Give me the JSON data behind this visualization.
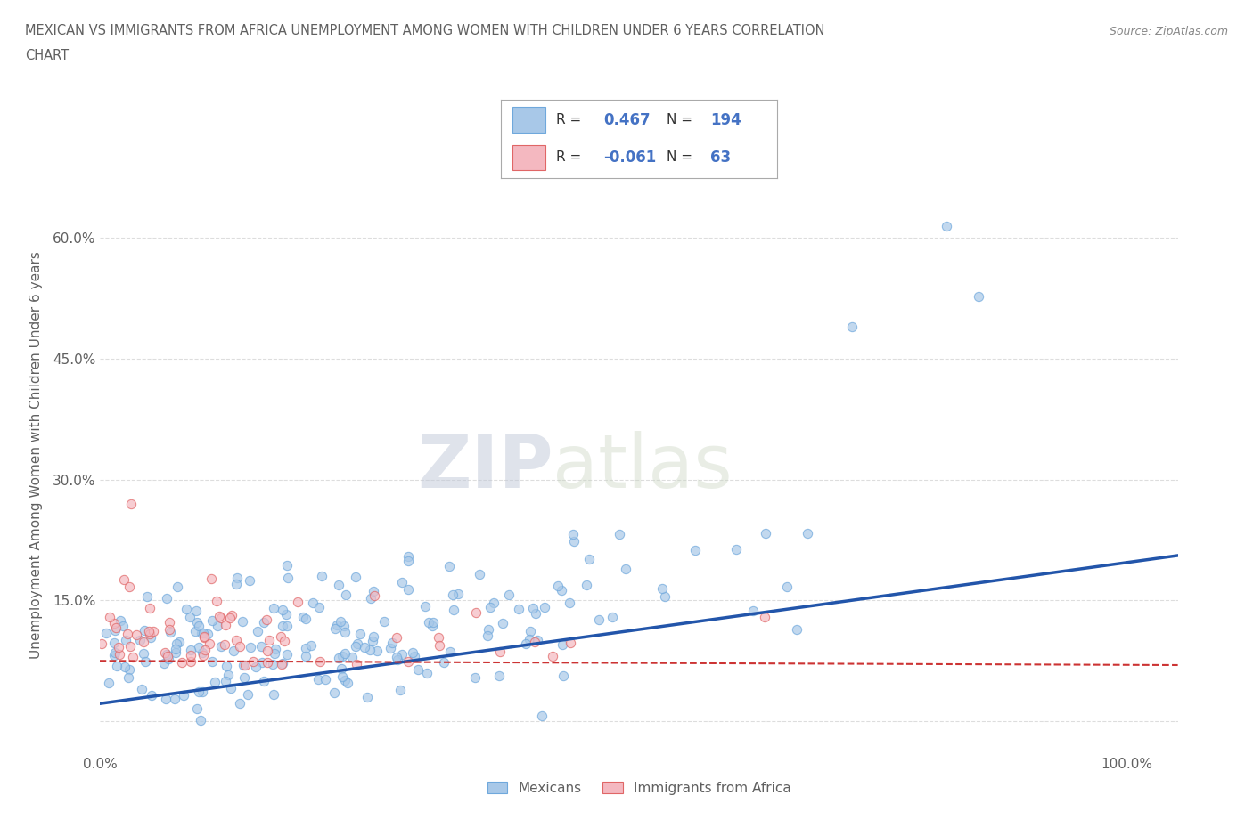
{
  "title_line1": "MEXICAN VS IMMIGRANTS FROM AFRICA UNEMPLOYMENT AMONG WOMEN WITH CHILDREN UNDER 6 YEARS CORRELATION",
  "title_line2": "CHART",
  "source": "Source: ZipAtlas.com",
  "ylabel": "Unemployment Among Women with Children Under 6 years",
  "xlim": [
    0.0,
    1.05
  ],
  "ylim": [
    -0.04,
    0.7
  ],
  "ytick_labels": [
    "",
    "15.0%",
    "30.0%",
    "45.0%",
    "60.0%"
  ],
  "ytick_values": [
    0.0,
    0.15,
    0.3,
    0.45,
    0.6
  ],
  "blue_color": "#a8c8e8",
  "pink_color": "#f4b8c0",
  "blue_edge_color": "#6fa8dc",
  "pink_edge_color": "#e06666",
  "blue_line_color": "#2255aa",
  "pink_line_color": "#cc3333",
  "R_blue": 0.467,
  "N_blue": 194,
  "R_pink": -0.061,
  "N_pink": 63,
  "legend_label_blue": "Mexicans",
  "legend_label_pink": "Immigrants from Africa",
  "watermark_zip": "ZIP",
  "watermark_atlas": "atlas",
  "background_color": "#ffffff",
  "grid_color": "#dddddd",
  "title_color": "#606060",
  "axis_color": "#606060",
  "legend_R_color": "#4472c4",
  "seed": 42
}
